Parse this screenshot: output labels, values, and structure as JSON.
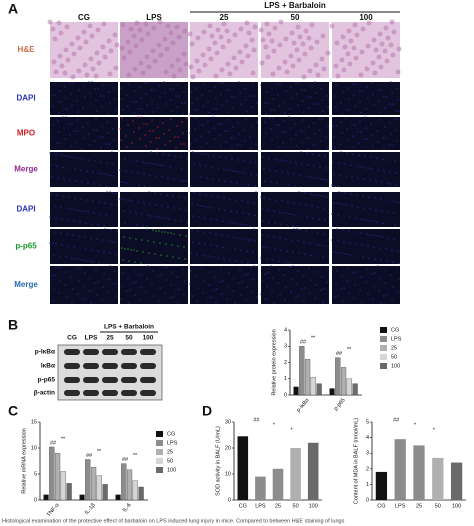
{
  "panel_labels": [
    "A",
    "B",
    "C",
    "D"
  ],
  "panel_a": {
    "group_header": "LPS + Barbaloin",
    "columns": [
      "CG",
      "LPS",
      "25",
      "50",
      "100"
    ],
    "rows": [
      {
        "label": "H&E",
        "color": "#c8704a"
      },
      {
        "label": "DAPI",
        "color": "#2a35b0"
      },
      {
        "label": "MPO",
        "color": "#d01c1c"
      },
      {
        "label": "Merge",
        "color": "#8a2a8a"
      },
      {
        "label": "DAPI",
        "color": "#2a35b0"
      },
      {
        "label": "p-p65",
        "color": "#1e9a2a"
      },
      {
        "label": "Merge",
        "color": "#2a6ab0"
      }
    ]
  },
  "panel_b_blot": {
    "group_header": "LPS + Barbaloin",
    "columns": [
      "CG",
      "LPS",
      "25",
      "50",
      "100"
    ],
    "rows": [
      "p-IκBα",
      "IκBα",
      "p-p65",
      "β-actin"
    ]
  },
  "chart_data": [
    {
      "type": "bar",
      "y_label": "Relative protein expression",
      "categories": [
        "p-IκBα",
        "p-p65"
      ],
      "ylim": [
        0,
        4
      ],
      "yticks": [
        0,
        1,
        2,
        3,
        4
      ],
      "series": [
        {
          "name": "CG",
          "color": "#111111",
          "values": [
            0.5,
            0.4
          ]
        },
        {
          "name": "LPS",
          "color": "#8c8c8c",
          "values": [
            3.0,
            2.3
          ]
        },
        {
          "name": "25",
          "color": "#b0b0b0",
          "values": [
            2.2,
            1.7
          ]
        },
        {
          "name": "50",
          "color": "#d6d6d6",
          "values": [
            1.1,
            1.0
          ]
        },
        {
          "name": "100",
          "color": "#6a6a6a",
          "values": [
            0.7,
            0.7
          ]
        }
      ],
      "annotations": [
        "##",
        "**",
        "##",
        "**"
      ]
    },
    {
      "type": "bar",
      "y_label": "Relative mRNA expression",
      "categories": [
        "TNF-α",
        "IL-1β",
        "IL-6"
      ],
      "ylim": [
        0,
        15
      ],
      "yticks": [
        0,
        5,
        10,
        15
      ],
      "series": [
        {
          "name": "CG",
          "color": "#111111",
          "values": [
            1,
            1,
            1
          ]
        },
        {
          "name": "LPS",
          "color": "#8c8c8c",
          "values": [
            10.2,
            7.8,
            7.0
          ]
        },
        {
          "name": "25",
          "color": "#b0b0b0",
          "values": [
            9.0,
            6.3,
            5.8
          ]
        },
        {
          "name": "50",
          "color": "#d6d6d6",
          "values": [
            5.5,
            4.7,
            3.7
          ]
        },
        {
          "name": "100",
          "color": "#6a6a6a",
          "values": [
            3.2,
            3.0,
            2.5
          ]
        }
      ],
      "annotations": [
        "##",
        "**",
        "##",
        "**",
        "##",
        "**"
      ]
    },
    {
      "type": "bar",
      "y_label": "SOD activity in BALF (U/mL)",
      "categories": [
        "CG",
        "LPS",
        "25",
        "50",
        "100"
      ],
      "ylim": [
        0,
        30
      ],
      "yticks": [
        0,
        10,
        20,
        30
      ],
      "values": [
        24.5,
        9,
        12,
        20,
        22
      ],
      "colors": [
        "#111111",
        "#8c8c8c",
        "#8c8c8c",
        "#b0b0b0",
        "#6a6a6a"
      ],
      "annotations": [
        "##",
        "*",
        "*"
      ]
    },
    {
      "type": "bar",
      "y_label": "Content of MDA in BALF (nmol/mL)",
      "categories": [
        "CG",
        "LPS",
        "25",
        "50",
        "100"
      ],
      "ylim": [
        0,
        5
      ],
      "yticks": [
        0,
        1,
        2,
        3,
        4,
        5
      ],
      "values": [
        1.8,
        3.9,
        3.5,
        2.7,
        2.4
      ],
      "colors": [
        "#111111",
        "#8c8c8c",
        "#8c8c8c",
        "#b0b0b0",
        "#6a6a6a"
      ],
      "annotations": [
        "##",
        "*",
        "*"
      ]
    }
  ],
  "caption": "Histological examination of the protective effect of barbaloin on LPS induced lung injury in mice. Compared to between H&E staining of lungs"
}
